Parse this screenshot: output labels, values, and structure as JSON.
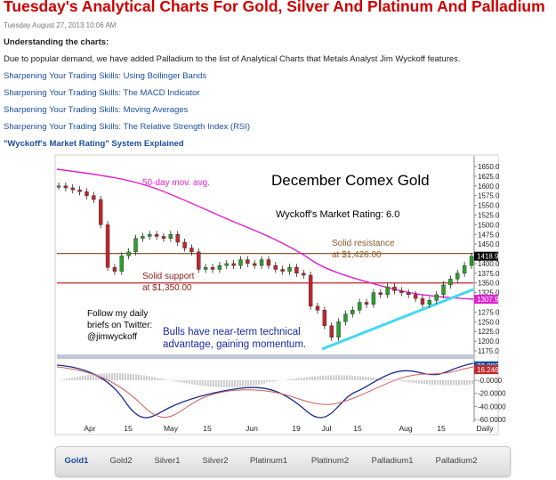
{
  "header": {
    "title": "Tuesday's Analytical Charts For Gold, Silver And Platinum And Palladium",
    "date": "Tuesday August 27, 2013 10:06 AM"
  },
  "intro": {
    "heading": "Understanding the charts:",
    "text": "Due to popular demand, we have added Palladium to the list of Analytical Charts that Metals Analyst Jim Wyckoff features."
  },
  "links": [
    "Sharpening Your Trading Skills: Using Bollinger Bands",
    "Sharpening Your Trading Skills: The MACD Indicator",
    "Sharpening Your Trading Skills: Moving Averages",
    "Sharpening Your Trading Skills: The Relative Strength Index (RSI)",
    "\"Wyckoff's Market Rating\" System Explained"
  ],
  "chart": {
    "title": "December Comex Gold",
    "rating": "Wyckoff's Market Rating: 6.0",
    "ma_label": "50-day mov. avg.",
    "resistance": {
      "lines": [
        "Solid resistance",
        "at $1,426.00"
      ],
      "value": 1426
    },
    "support": {
      "lines": [
        "Solid support",
        "at $1,350.00"
      ],
      "value": 1350
    },
    "twitter": [
      "Follow my daily",
      "briefs on Twitter:",
      "@jimwyckoff"
    ],
    "comment": [
      "Bulls have near-term technical",
      "advantage, gaining momentum."
    ],
    "price_ticks": [
      {
        "value": 1650,
        "label": "1650.0"
      },
      {
        "value": 1625,
        "label": "1625.0"
      },
      {
        "value": 1600,
        "label": "1600.0"
      },
      {
        "value": 1575,
        "label": "1575.0"
      },
      {
        "value": 1550,
        "label": "1550.0"
      },
      {
        "value": 1525,
        "label": "1525.0"
      },
      {
        "value": 1500,
        "label": "1500.0"
      },
      {
        "value": 1475,
        "label": "1475.0"
      },
      {
        "value": 1450,
        "label": "1450.0"
      },
      {
        "value": 1400,
        "label": "1400.0"
      },
      {
        "value": 1375,
        "label": "1375.0"
      },
      {
        "value": 1350,
        "label": "1350.0"
      },
      {
        "value": 1325,
        "label": "1325.0"
      },
      {
        "value": 1275,
        "label": "1275.0"
      },
      {
        "value": 1250,
        "label": "1250.0"
      },
      {
        "value": 1225,
        "label": "1225.0"
      },
      {
        "value": 1200,
        "label": "1200.0"
      },
      {
        "value": 1175,
        "label": "1175.0"
      }
    ],
    "last_price": 1418.9,
    "ma_last": 1307.9,
    "macd_ticks": [
      {
        "value": 0,
        "label": "-0.0000"
      },
      {
        "value": -20,
        "label": "-20.0000"
      },
      {
        "value": -40,
        "label": "-40.0000"
      },
      {
        "value": -60,
        "label": "-60.0000"
      }
    ],
    "macd_last": 22.086,
    "signal_last": 16.2466,
    "x_labels": [
      "Apr",
      "15",
      "May",
      "15",
      "Jun",
      "19",
      "Jul",
      "15",
      "Aug",
      "15",
      "Daily"
    ],
    "closes": [
      1600,
      1595,
      1590,
      1585,
      1575,
      1565,
      1500,
      1390,
      1380,
      1420,
      1430,
      1465,
      1470,
      1475,
      1470,
      1465,
      1475,
      1455,
      1440,
      1430,
      1385,
      1390,
      1385,
      1395,
      1400,
      1395,
      1410,
      1400,
      1395,
      1410,
      1395,
      1385,
      1380,
      1390,
      1375,
      1370,
      1290,
      1280,
      1240,
      1210,
      1250,
      1270,
      1280,
      1300,
      1295,
      1325,
      1320,
      1340,
      1330,
      1325,
      1320,
      1310,
      1295,
      1305,
      1320,
      1345,
      1360,
      1375,
      1395,
      1418.9
    ]
  },
  "tabs": [
    "Gold1",
    "Gold2",
    "Silver1",
    "Silver2",
    "Platinum1",
    "Platinum2",
    "Palladium1",
    "Palladium2"
  ]
}
